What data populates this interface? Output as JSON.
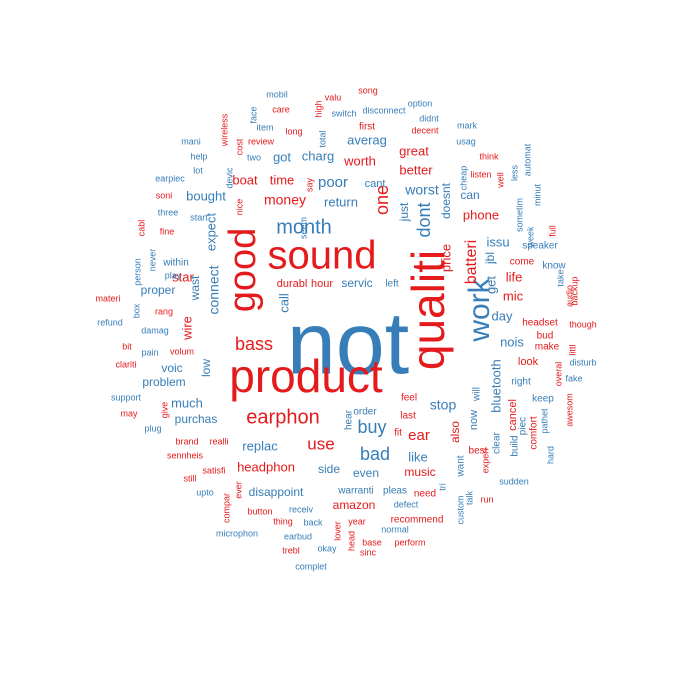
{
  "colors": {
    "red": "#e41a1c",
    "blue": "#377eb8"
  },
  "words": [
    {
      "text": "not",
      "color": "blue",
      "weight": 1.0
    },
    {
      "text": "product",
      "color": "red",
      "weight": 0.72
    },
    {
      "text": "qualiti",
      "color": "red",
      "weight": 0.7
    },
    {
      "text": "sound",
      "color": "red",
      "weight": 0.6
    },
    {
      "text": "good",
      "color": "red",
      "weight": 0.58
    },
    {
      "text": "work",
      "color": "blue",
      "weight": 0.48
    },
    {
      "text": "month",
      "color": "blue",
      "weight": 0.3
    },
    {
      "text": "earphon",
      "color": "red",
      "weight": 0.3
    },
    {
      "text": "bass",
      "color": "red",
      "weight": 0.28
    },
    {
      "text": "buy",
      "color": "blue",
      "weight": 0.27
    },
    {
      "text": "one",
      "color": "red",
      "weight": 0.26
    },
    {
      "text": "dont",
      "color": "blue",
      "weight": 0.25
    },
    {
      "text": "bad",
      "color": "blue",
      "weight": 0.24
    },
    {
      "text": "batteri",
      "color": "red",
      "weight": 0.23
    },
    {
      "text": "use",
      "color": "red",
      "weight": 0.24
    },
    {
      "text": "bluetooth",
      "color": "blue",
      "weight": 0.19
    },
    {
      "text": "poor",
      "color": "blue",
      "weight": 0.2
    },
    {
      "text": "stop",
      "color": "blue",
      "weight": 0.19
    },
    {
      "text": "worst",
      "color": "blue",
      "weight": 0.19
    },
    {
      "text": "ear",
      "color": "red",
      "weight": 0.19
    },
    {
      "text": "money",
      "color": "red",
      "weight": 0.18
    },
    {
      "text": "headphon",
      "color": "red",
      "weight": 0.18
    },
    {
      "text": "replac",
      "color": "blue",
      "weight": 0.17
    },
    {
      "text": "connect",
      "color": "blue",
      "weight": 0.16
    },
    {
      "text": "price",
      "color": "red",
      "weight": 0.16
    },
    {
      "text": "call",
      "color": "blue",
      "weight": 0.16
    },
    {
      "text": "get",
      "color": "blue",
      "weight": 0.15
    },
    {
      "text": "day",
      "color": "blue",
      "weight": 0.16
    },
    {
      "text": "phone",
      "color": "red",
      "weight": 0.15
    },
    {
      "text": "mic",
      "color": "red",
      "weight": 0.15
    },
    {
      "text": "time",
      "color": "red",
      "weight": 0.14
    },
    {
      "text": "charg",
      "color": "blue",
      "weight": 0.14
    },
    {
      "text": "worth",
      "color": "red",
      "weight": 0.14
    },
    {
      "text": "great",
      "color": "red",
      "weight": 0.14
    },
    {
      "text": "better",
      "color": "red",
      "weight": 0.14
    },
    {
      "text": "return",
      "color": "blue",
      "weight": 0.14
    },
    {
      "text": "like",
      "color": "blue",
      "weight": 0.14
    },
    {
      "text": "just",
      "color": "blue",
      "weight": 0.13
    },
    {
      "text": "doesnt",
      "color": "blue",
      "weight": 0.13
    },
    {
      "text": "nois",
      "color": "blue",
      "weight": 0.13
    },
    {
      "text": "issu",
      "color": "blue",
      "weight": 0.13
    },
    {
      "text": "jbl",
      "color": "blue",
      "weight": 0.13
    },
    {
      "text": "life",
      "color": "red",
      "weight": 0.13
    },
    {
      "text": "wire",
      "color": "red",
      "weight": 0.13
    },
    {
      "text": "star",
      "color": "red",
      "weight": 0.13
    },
    {
      "text": "expect",
      "color": "blue",
      "weight": 0.13
    },
    {
      "text": "bought",
      "color": "blue",
      "weight": 0.13
    },
    {
      "text": "boat",
      "color": "red",
      "weight": 0.13
    },
    {
      "text": "got",
      "color": "blue",
      "weight": 0.13
    },
    {
      "text": "averag",
      "color": "blue",
      "weight": 0.13
    },
    {
      "text": "can",
      "color": "blue",
      "weight": 0.13
    },
    {
      "text": "also",
      "color": "red",
      "weight": 0.13
    },
    {
      "text": "much",
      "color": "blue",
      "weight": 0.13
    },
    {
      "text": "low",
      "color": "blue",
      "weight": 0.13
    },
    {
      "text": "wast",
      "color": "blue",
      "weight": 0.13
    },
    {
      "text": "voic",
      "color": "blue",
      "weight": 0.12
    },
    {
      "text": "problem",
      "color": "blue",
      "weight": 0.12
    },
    {
      "text": "purchas",
      "color": "blue",
      "weight": 0.12
    },
    {
      "text": "proper",
      "color": "blue",
      "weight": 0.12
    },
    {
      "text": "side",
      "color": "blue",
      "weight": 0.12
    },
    {
      "text": "even",
      "color": "blue",
      "weight": 0.12
    },
    {
      "text": "music",
      "color": "red",
      "weight": 0.12
    },
    {
      "text": "disappoint",
      "color": "blue",
      "weight": 0.12
    },
    {
      "text": "amazon",
      "color": "red",
      "weight": 0.12
    },
    {
      "text": "servic",
      "color": "blue",
      "weight": 0.12
    },
    {
      "text": "durabl",
      "color": "red",
      "weight": 0.11
    },
    {
      "text": "hour",
      "color": "red",
      "weight": 0.11
    },
    {
      "text": "cant",
      "color": "blue",
      "weight": 0.11
    },
    {
      "text": "left",
      "color": "blue",
      "weight": 0.1
    },
    {
      "text": "will",
      "color": "blue",
      "weight": 0.1
    },
    {
      "text": "feel",
      "color": "red",
      "weight": 0.1
    },
    {
      "text": "last",
      "color": "red",
      "weight": 0.1
    },
    {
      "text": "fit",
      "color": "red",
      "weight": 0.1
    },
    {
      "text": "hear",
      "color": "blue",
      "weight": 0.1
    },
    {
      "text": "order",
      "color": "blue",
      "weight": 0.1
    },
    {
      "text": "now",
      "color": "blue",
      "weight": 0.11
    },
    {
      "text": "cancel",
      "color": "red",
      "weight": 0.11
    },
    {
      "text": "look",
      "color": "red",
      "weight": 0.11
    },
    {
      "text": "headset",
      "color": "red",
      "weight": 0.1
    },
    {
      "text": "make",
      "color": "red",
      "weight": 0.1
    },
    {
      "text": "right",
      "color": "blue",
      "weight": 0.1
    },
    {
      "text": "keep",
      "color": "blue",
      "weight": 0.1
    },
    {
      "text": "come",
      "color": "red",
      "weight": 0.1
    },
    {
      "text": "know",
      "color": "blue",
      "weight": 0.1
    },
    {
      "text": "speaker",
      "color": "blue",
      "weight": 0.1
    },
    {
      "text": "take",
      "color": "blue",
      "weight": 0.09
    },
    {
      "text": "backup",
      "color": "red",
      "weight": 0.09
    },
    {
      "text": "audio",
      "color": "red",
      "weight": 0.09
    },
    {
      "text": "bud",
      "color": "red",
      "weight": 0.1
    },
    {
      "text": "littl",
      "color": "red",
      "weight": 0.09
    },
    {
      "text": "disturb",
      "color": "blue",
      "weight": 0.09
    },
    {
      "text": "fake",
      "color": "blue",
      "weight": 0.09
    },
    {
      "text": "overal",
      "color": "red",
      "weight": 0.09
    },
    {
      "text": "though",
      "color": "red",
      "weight": 0.09
    },
    {
      "text": "awesom",
      "color": "red",
      "weight": 0.09
    },
    {
      "text": "pathet",
      "color": "blue",
      "weight": 0.09
    },
    {
      "text": "comfort",
      "color": "red",
      "weight": 0.1
    },
    {
      "text": "build",
      "color": "blue",
      "weight": 0.1
    },
    {
      "text": "piec",
      "color": "blue",
      "weight": 0.1
    },
    {
      "text": "hard",
      "color": "blue",
      "weight": 0.09
    },
    {
      "text": "clear",
      "color": "blue",
      "weight": 0.1
    },
    {
      "text": "best",
      "color": "red",
      "weight": 0.1
    },
    {
      "text": "experi",
      "color": "red",
      "weight": 0.09
    },
    {
      "text": "want",
      "color": "blue",
      "weight": 0.1
    },
    {
      "text": "tri",
      "color": "blue",
      "weight": 0.09
    },
    {
      "text": "run",
      "color": "red",
      "weight": 0.09
    },
    {
      "text": "sudden",
      "color": "blue",
      "weight": 0.09
    },
    {
      "text": "talk",
      "color": "blue",
      "weight": 0.09
    },
    {
      "text": "custom",
      "color": "blue",
      "weight": 0.09
    },
    {
      "text": "need",
      "color": "red",
      "weight": 0.1
    },
    {
      "text": "pleas",
      "color": "blue",
      "weight": 0.1
    },
    {
      "text": "defect",
      "color": "blue",
      "weight": 0.09
    },
    {
      "text": "recommend",
      "color": "red",
      "weight": 0.1
    },
    {
      "text": "perform",
      "color": "red",
      "weight": 0.09
    },
    {
      "text": "normal",
      "color": "blue",
      "weight": 0.09
    },
    {
      "text": "sinc",
      "color": "red",
      "weight": 0.09
    },
    {
      "text": "base",
      "color": "red",
      "weight": 0.09
    },
    {
      "text": "year",
      "color": "red",
      "weight": 0.09
    },
    {
      "text": "warranti",
      "color": "blue",
      "weight": 0.1
    },
    {
      "text": "lover",
      "color": "red",
      "weight": 0.09
    },
    {
      "text": "head",
      "color": "red",
      "weight": 0.09
    },
    {
      "text": "okay",
      "color": "blue",
      "weight": 0.09
    },
    {
      "text": "back",
      "color": "blue",
      "weight": 0.09
    },
    {
      "text": "thing",
      "color": "red",
      "weight": 0.09
    },
    {
      "text": "receiv",
      "color": "blue",
      "weight": 0.09
    },
    {
      "text": "button",
      "color": "red",
      "weight": 0.09
    },
    {
      "text": "earbud",
      "color": "blue",
      "weight": 0.09
    },
    {
      "text": "trebl",
      "color": "red",
      "weight": 0.09
    },
    {
      "text": "complet",
      "color": "blue",
      "weight": 0.09
    },
    {
      "text": "microphon",
      "color": "blue",
      "weight": 0.09
    },
    {
      "text": "compar",
      "color": "red",
      "weight": 0.09
    },
    {
      "text": "ever",
      "color": "red",
      "weight": 0.09
    },
    {
      "text": "upto",
      "color": "blue",
      "weight": 0.09
    },
    {
      "text": "satisfi",
      "color": "red",
      "weight": 0.09
    },
    {
      "text": "still",
      "color": "red",
      "weight": 0.09
    },
    {
      "text": "sennheis",
      "color": "red",
      "weight": 0.09
    },
    {
      "text": "brand",
      "color": "red",
      "weight": 0.09
    },
    {
      "text": "realli",
      "color": "red",
      "weight": 0.09
    },
    {
      "text": "plug",
      "color": "blue",
      "weight": 0.09
    },
    {
      "text": "give",
      "color": "red",
      "weight": 0.09
    },
    {
      "text": "may",
      "color": "red",
      "weight": 0.09
    },
    {
      "text": "support",
      "color": "blue",
      "weight": 0.09
    },
    {
      "text": "clariti",
      "color": "red",
      "weight": 0.09
    },
    {
      "text": "pain",
      "color": "blue",
      "weight": 0.09
    },
    {
      "text": "volum",
      "color": "red",
      "weight": 0.09
    },
    {
      "text": "bit",
      "color": "red",
      "weight": 0.09
    },
    {
      "text": "damag",
      "color": "blue",
      "weight": 0.09
    },
    {
      "text": "refund",
      "color": "blue",
      "weight": 0.09
    },
    {
      "text": "box",
      "color": "blue",
      "weight": 0.09
    },
    {
      "text": "materi",
      "color": "red",
      "weight": 0.09
    },
    {
      "text": "rang",
      "color": "red",
      "weight": 0.09
    },
    {
      "text": "play",
      "color": "blue",
      "weight": 0.09
    },
    {
      "text": "within",
      "color": "blue",
      "weight": 0.1
    },
    {
      "text": "fine",
      "color": "red",
      "weight": 0.09
    },
    {
      "text": "person",
      "color": "blue",
      "weight": 0.09
    },
    {
      "text": "never",
      "color": "blue",
      "weight": 0.09
    },
    {
      "text": "cabl",
      "color": "red",
      "weight": 0.09
    },
    {
      "text": "three",
      "color": "blue",
      "weight": 0.09
    },
    {
      "text": "start",
      "color": "blue",
      "weight": 0.09
    },
    {
      "text": "soni",
      "color": "red",
      "weight": 0.09
    },
    {
      "text": "earpiec",
      "color": "blue",
      "weight": 0.09
    },
    {
      "text": "lot",
      "color": "blue",
      "weight": 0.09
    },
    {
      "text": "help",
      "color": "blue",
      "weight": 0.09
    },
    {
      "text": "mani",
      "color": "blue",
      "weight": 0.09
    },
    {
      "text": "devic",
      "color": "blue",
      "weight": 0.09
    },
    {
      "text": "nice",
      "color": "red",
      "weight": 0.09
    },
    {
      "text": "two",
      "color": "blue",
      "weight": 0.09
    },
    {
      "text": "review",
      "color": "red",
      "weight": 0.09
    },
    {
      "text": "cost",
      "color": "red",
      "weight": 0.09
    },
    {
      "text": "wireless",
      "color": "red",
      "weight": 0.09
    },
    {
      "text": "face",
      "color": "blue",
      "weight": 0.09
    },
    {
      "text": "item",
      "color": "blue",
      "weight": 0.09
    },
    {
      "text": "long",
      "color": "red",
      "weight": 0.09
    },
    {
      "text": "care",
      "color": "red",
      "weight": 0.09
    },
    {
      "text": "mobil",
      "color": "blue",
      "weight": 0.09
    },
    {
      "text": "seem",
      "color": "blue",
      "weight": 0.09
    },
    {
      "text": "say",
      "color": "red",
      "weight": 0.09
    },
    {
      "text": "total",
      "color": "blue",
      "weight": 0.09
    },
    {
      "text": "high",
      "color": "red",
      "weight": 0.09
    },
    {
      "text": "valu",
      "color": "red",
      "weight": 0.09
    },
    {
      "text": "switch",
      "color": "blue",
      "weight": 0.09
    },
    {
      "text": "first",
      "color": "red",
      "weight": 0.09
    },
    {
      "text": "disconnect",
      "color": "blue",
      "weight": 0.1
    },
    {
      "text": "song",
      "color": "red",
      "weight": 0.09
    },
    {
      "text": "option",
      "color": "blue",
      "weight": 0.09
    },
    {
      "text": "didnt",
      "color": "blue",
      "weight": 0.09
    },
    {
      "text": "decent",
      "color": "red",
      "weight": 0.09
    },
    {
      "text": "mark",
      "color": "blue",
      "weight": 0.09
    },
    {
      "text": "usag",
      "color": "blue",
      "weight": 0.09
    },
    {
      "text": "think",
      "color": "red",
      "weight": 0.09
    },
    {
      "text": "cheap",
      "color": "blue",
      "weight": 0.09
    },
    {
      "text": "listen",
      "color": "red",
      "weight": 0.09
    },
    {
      "text": "well",
      "color": "red",
      "weight": 0.09
    },
    {
      "text": "less",
      "color": "blue",
      "weight": 0.09
    },
    {
      "text": "automat",
      "color": "blue",
      "weight": 0.09
    },
    {
      "text": "minut",
      "color": "blue",
      "weight": 0.09
    },
    {
      "text": "sometim",
      "color": "blue",
      "weight": 0.09
    },
    {
      "text": "week",
      "color": "blue",
      "weight": 0.09
    },
    {
      "text": "full",
      "color": "red",
      "weight": 0.09
    },
    {
      "text": "abl",
      "color": "blue",
      "weight": 0.09
    }
  ]
}
